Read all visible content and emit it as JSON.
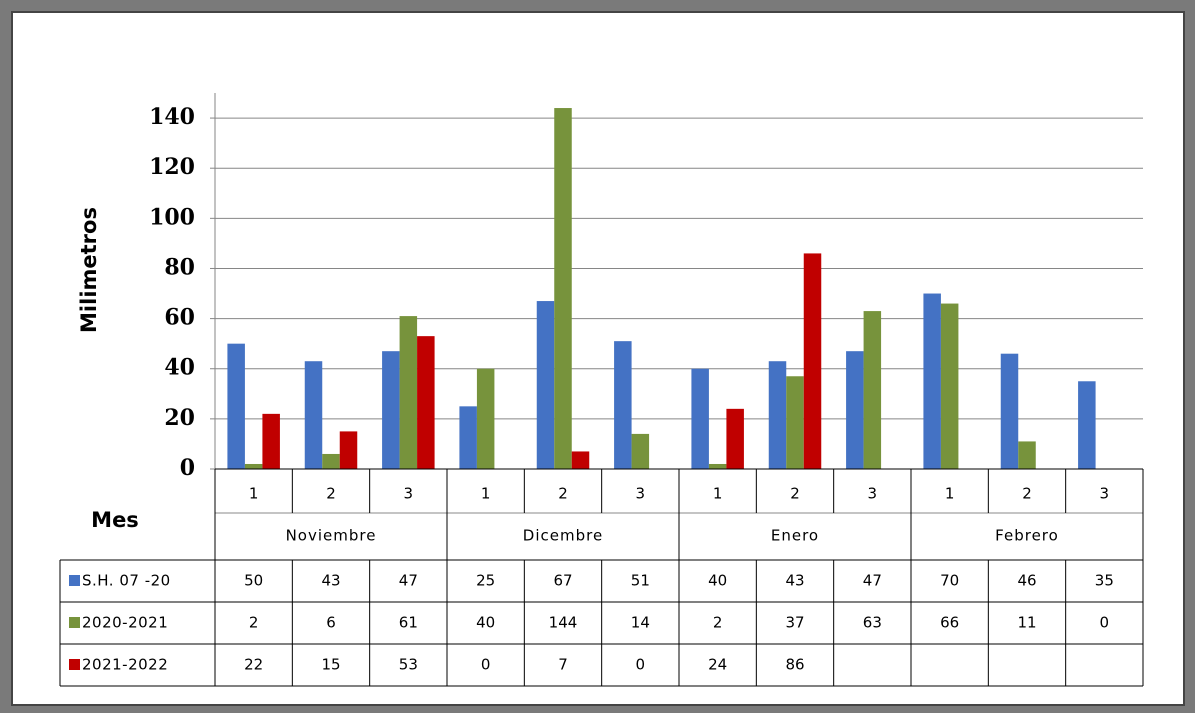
{
  "chart_data": {
    "type": "bar",
    "y_label": "Milimetros",
    "x_label": "Mes",
    "categories": [
      "1",
      "2",
      "3",
      "1",
      "2",
      "3",
      "1",
      "2",
      "3",
      "1",
      "2",
      "3"
    ],
    "groups": [
      "Noviembre",
      "Dicembre",
      "Enero",
      "Febrero"
    ],
    "series": [
      {
        "name": "S.H. 07 -20",
        "color": "#4472c4",
        "values": [
          50,
          43,
          47,
          25,
          67,
          51,
          40,
          43,
          47,
          70,
          46,
          35
        ]
      },
      {
        "name": "2020-2021",
        "color": "#77933c",
        "values": [
          2,
          6,
          61,
          40,
          144,
          14,
          2,
          37,
          63,
          66,
          11,
          0
        ]
      },
      {
        "name": "2021-2022",
        "color": "#c00000",
        "values": [
          22,
          15,
          53,
          0,
          7,
          0,
          24,
          86,
          null,
          null,
          null,
          null
        ]
      }
    ],
    "ylim": [
      0,
      150
    ],
    "yticks": [
      0,
      20,
      40,
      60,
      80,
      100,
      120,
      140
    ],
    "grid": true
  }
}
